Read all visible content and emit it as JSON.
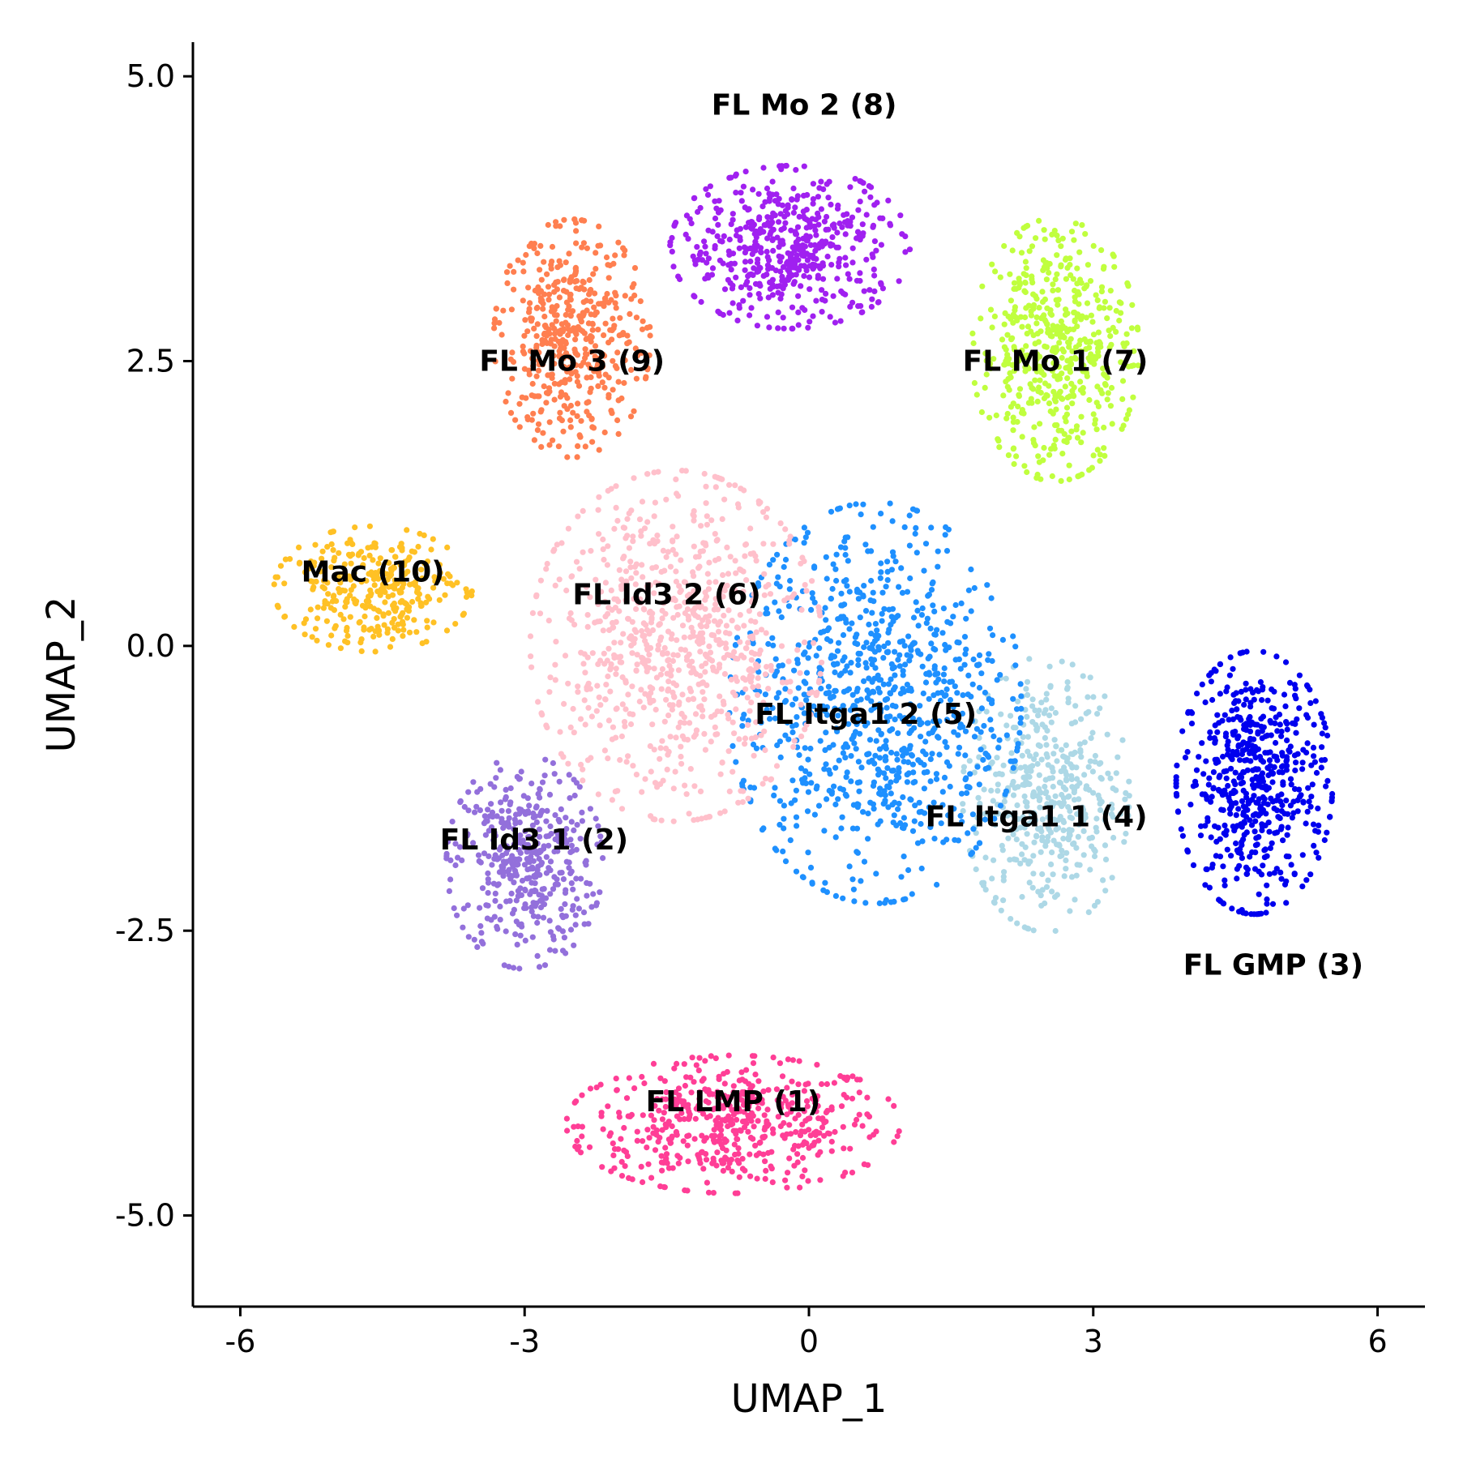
{
  "chart_data": {
    "type": "scatter",
    "title": "",
    "xlabel": "UMAP_1",
    "ylabel": "UMAP_2",
    "xlim": [
      -6.5,
      6.5
    ],
    "ylim": [
      -5.8,
      5.3
    ],
    "x_ticks": [
      -6,
      -3,
      0,
      3,
      6
    ],
    "x_tick_labels": [
      "-6",
      "-3",
      "0",
      "3",
      "6"
    ],
    "y_ticks": [
      -5.0,
      -2.5,
      0.0,
      2.5,
      5.0
    ],
    "y_tick_labels": [
      "-5.0",
      "-2.5",
      "0.0",
      "2.5",
      "5.0"
    ],
    "grid": false,
    "legend": "none",
    "clusters": [
      {
        "label": "FL LMP (1)",
        "color": "#FF3E96",
        "label_at": [
          -0.8,
          -4.0
        ],
        "center": [
          -0.8,
          -4.2
        ],
        "spread": [
          1.6,
          0.55
        ],
        "n": 520
      },
      {
        "label": "FL Id3 1 (2)",
        "color": "#9370DB",
        "label_at": [
          -2.9,
          -1.7
        ],
        "center": [
          -3.0,
          -1.9
        ],
        "spread": [
          0.75,
          0.85
        ],
        "n": 420
      },
      {
        "label": "FL GMP (3)",
        "color": "#0000EE",
        "label_at": [
          4.9,
          -2.8
        ],
        "center": [
          4.7,
          -1.2
        ],
        "spread": [
          0.75,
          1.05
        ],
        "n": 560
      },
      {
        "label": "FL Itga1 1 (4)",
        "color": "#ADD8E6",
        "label_at": [
          2.4,
          -1.5
        ],
        "center": [
          2.5,
          -1.3
        ],
        "spread": [
          0.8,
          1.1
        ],
        "n": 460
      },
      {
        "label": "FL Itga1 2 (5)",
        "color": "#1E90FF",
        "label_at": [
          0.6,
          -0.6
        ],
        "center": [
          0.7,
          -0.5
        ],
        "spread": [
          1.4,
          1.6
        ],
        "n": 900
      },
      {
        "label": "FL Id3 2 (6)",
        "color": "#FFC0CB",
        "label_at": [
          -1.5,
          0.45
        ],
        "center": [
          -1.4,
          0.0
        ],
        "spread": [
          1.4,
          1.4
        ],
        "n": 800
      },
      {
        "label": "FL Mo 1 (7)",
        "color": "#C0FF3E",
        "label_at": [
          2.6,
          2.5
        ],
        "center": [
          2.6,
          2.6
        ],
        "spread": [
          0.8,
          1.05
        ],
        "n": 520
      },
      {
        "label": "FL Mo 2 (8)",
        "color": "#A020F0",
        "label_at": [
          -0.05,
          4.75
        ],
        "center": [
          -0.2,
          3.5
        ],
        "spread": [
          1.15,
          0.65
        ],
        "n": 520
      },
      {
        "label": "FL Mo 3 (9)",
        "color": "#FF7F50",
        "label_at": [
          -2.5,
          2.5
        ],
        "center": [
          -2.5,
          2.7
        ],
        "spread": [
          0.75,
          0.95
        ],
        "n": 460
      },
      {
        "label": "Mac (10)",
        "color": "#FFC125",
        "label_at": [
          -4.6,
          0.65
        ],
        "center": [
          -4.6,
          0.5
        ],
        "spread": [
          0.95,
          0.5
        ],
        "n": 320
      }
    ]
  }
}
